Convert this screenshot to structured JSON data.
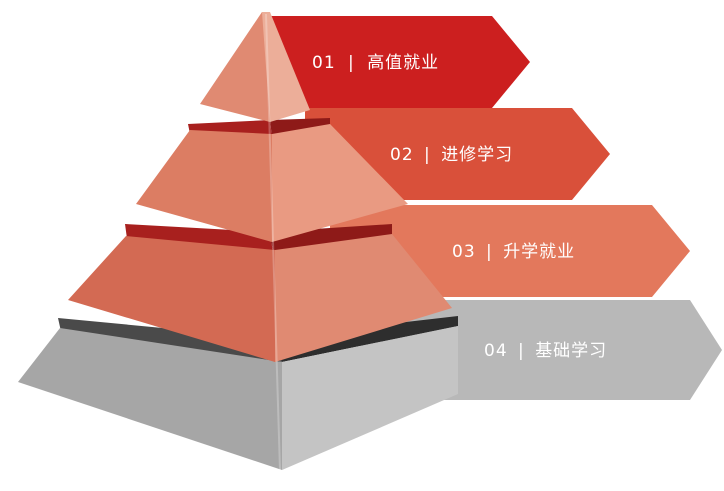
{
  "diagram": {
    "type": "pyramid",
    "tiers": [
      {
        "number": "01",
        "separator": "|",
        "label": "高值就业",
        "color": "#cc1f1f"
      },
      {
        "number": "02",
        "separator": "|",
        "label": "进修学习",
        "color": "#d9503a"
      },
      {
        "number": "03",
        "separator": "|",
        "label": "升学就业",
        "color": "#e3785c"
      },
      {
        "number": "04",
        "separator": "|",
        "label": "基础学习",
        "color": "#b8b8b8"
      }
    ]
  }
}
